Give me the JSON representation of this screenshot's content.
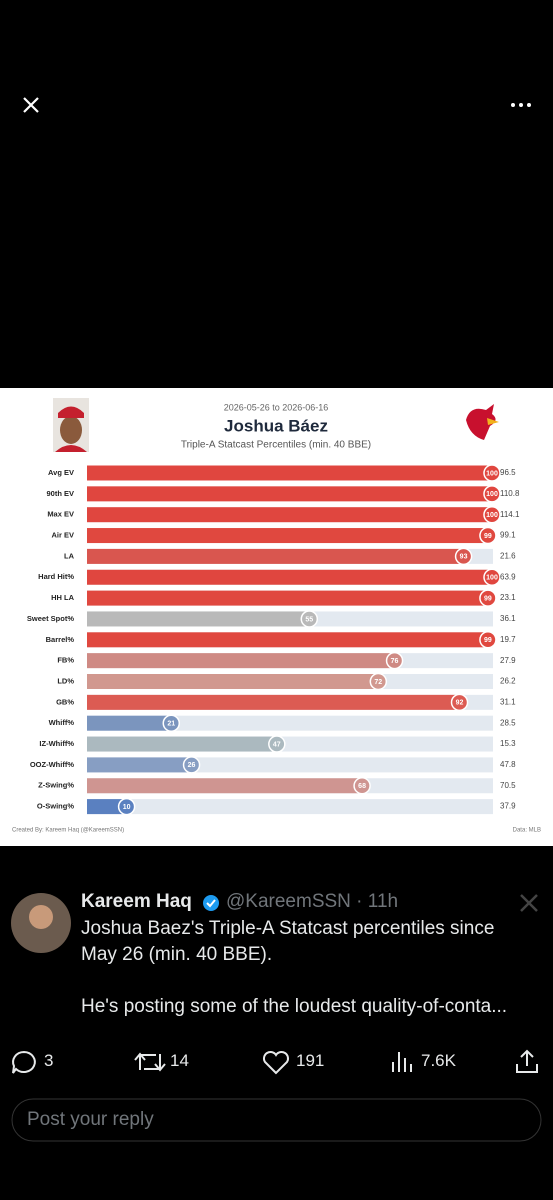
{
  "chart_data": {
    "type": "bar",
    "orientation": "horizontal",
    "date_range": "2026-05-26 to 2026-06-16",
    "title": "Joshua Báez",
    "subtitle": "Triple-A Statcast Percentiles (min. 40 BBE)",
    "categories": [
      "Avg EV",
      "90th EV",
      "Max EV",
      "Air EV",
      "LA",
      "Hard Hit%",
      "HH LA",
      "Sweet Spot%",
      "Barrel%",
      "FB%",
      "LD%",
      "GB%",
      "Whiff%",
      "IZ-Whiff%",
      "OOZ-Whiff%",
      "Z-Swing%",
      "O-Swing%"
    ],
    "values": [
      100,
      100,
      100,
      99,
      93,
      100,
      99,
      55,
      99,
      76,
      72,
      92,
      21,
      47,
      26,
      68,
      10
    ],
    "colors": [
      "#e0463f",
      "#e0463f",
      "#e0463f",
      "#e0483f",
      "#d9564f",
      "#e0463f",
      "#e0483f",
      "#b9b9b9",
      "#e0483f",
      "#cf8a84",
      "#d1988f",
      "#dc5b53",
      "#7b95be",
      "#abb9bf",
      "#879ec3",
      "#cf9591",
      "#5a80c0"
    ],
    "stats": [
      "96.5",
      "110.8",
      "114.1",
      "99.1",
      "21.6",
      "63.9",
      "23.1",
      "36.1",
      "19.7",
      "27.9",
      "26.2",
      "31.1",
      "28.5",
      "15.3",
      "47.8",
      "70.5",
      "37.9"
    ],
    "xlim": [
      0,
      100
    ],
    "track_color": "#e3e9f0",
    "credit": "Created By: Kareem Haq (@KareemSSN)",
    "source": "Data: MLB"
  },
  "tweet": {
    "name": "Kareem Haq",
    "handle": "@KareemSSN",
    "separator": "·",
    "time": "11h",
    "text": [
      "Joshua Baez's Triple-A Statcast percentiles since",
      "May 26 (min. 40 BBE).",
      "He's posting some of the loudest quality-of-conta..."
    ],
    "replies": 3,
    "reposts": 14,
    "likes": 191,
    "views": "7.6K",
    "reply_placeholder": "Post your reply"
  }
}
